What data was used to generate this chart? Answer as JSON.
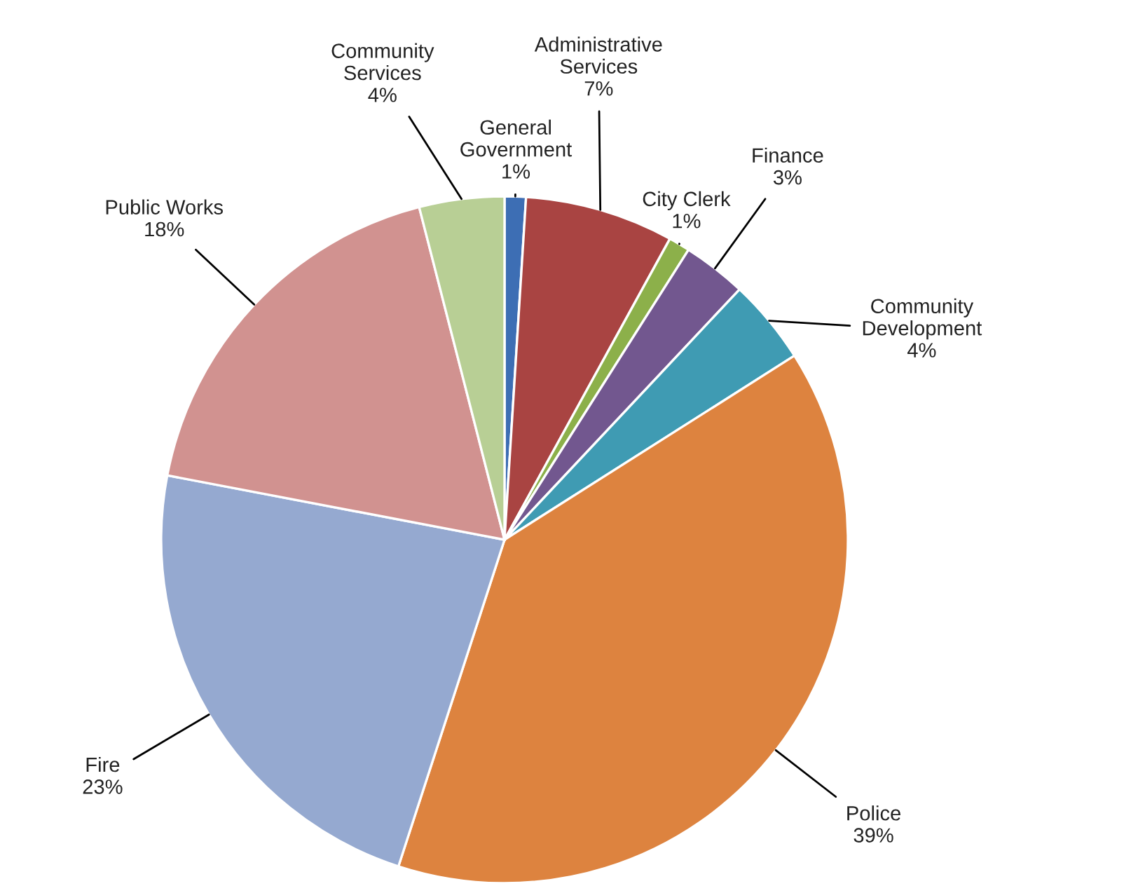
{
  "chart_data": {
    "type": "pie",
    "categories": [
      "General Government",
      "Administrative Services",
      "City Clerk",
      "Finance",
      "Community Development",
      "Police",
      "Fire",
      "Public Works",
      "Community Services"
    ],
    "values": [
      1,
      7,
      1,
      3,
      4,
      39,
      23,
      18,
      4
    ],
    "value_labels": [
      "1%",
      "7%",
      "1%",
      "3%",
      "4%",
      "39%",
      "23%",
      "18%",
      "4%"
    ],
    "colors": [
      "#3d6eb4",
      "#a94442",
      "#8cb04a",
      "#72578f",
      "#3f9bb3",
      "#dd833f",
      "#95a9d0",
      "#d19290",
      "#b8cf95"
    ],
    "legend": false
  }
}
